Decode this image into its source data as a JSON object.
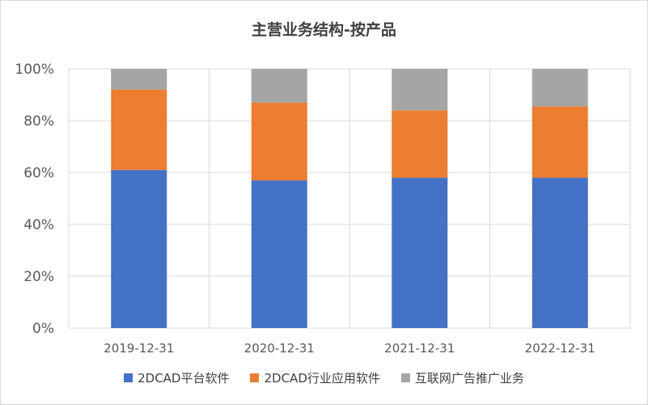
{
  "chart_data": {
    "type": "bar",
    "stacked": true,
    "title": "主营业务结构-按产品",
    "categories": [
      "2019-12-31",
      "2020-12-31",
      "2021-12-31",
      "2022-12-31"
    ],
    "series": [
      {
        "name": "2DCAD平台软件",
        "color": "#4472c4",
        "values": [
          61,
          57,
          58,
          58
        ]
      },
      {
        "name": "2DCAD行业应用软件",
        "color": "#ed7d31",
        "values": [
          31,
          30,
          26,
          27.5
        ]
      },
      {
        "name": "互联网广告推广业务",
        "color": "#a5a5a5",
        "values": [
          8,
          13,
          16,
          14.5
        ]
      }
    ],
    "ylim": [
      0,
      100
    ],
    "y_ticks": [
      "0%",
      "20%",
      "40%",
      "60%",
      "80%",
      "100%"
    ],
    "grid": true,
    "legend_position": "bottom"
  }
}
